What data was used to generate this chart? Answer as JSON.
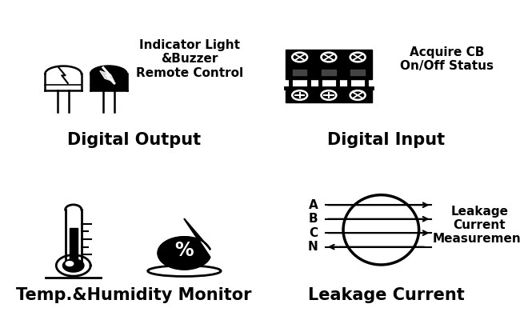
{
  "bg_color": "#ffffff",
  "border_color": "#000000",
  "text_color": "#000000",
  "quadrant_titles": [
    "Digital Output",
    "Digital Input",
    "Temp.&Humidity Monitor",
    "Leakage Current"
  ],
  "quadrant_subtitles": [
    "Indicator Light\n&Buzzer\nRemote Control",
    "Acquire CB\nOn/Off Status",
    "",
    "Leakage\nCurrent\nMeasurement"
  ],
  "leakage_labels": [
    "A",
    "B",
    "C",
    "N"
  ],
  "title_fontsize": 15,
  "subtitle_fontsize": 11,
  "label_fontsize": 11
}
